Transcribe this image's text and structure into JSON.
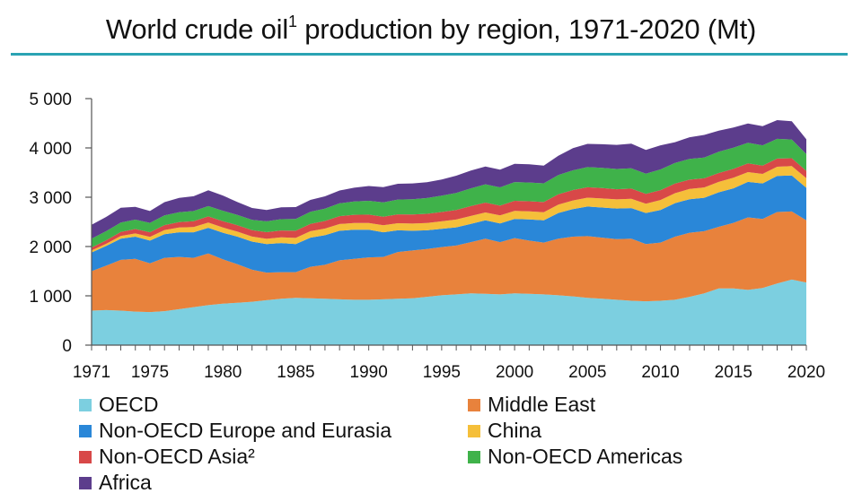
{
  "title": {
    "main": "World crude oil",
    "sup": "1",
    "rest": " production by region, 1971-2020 (Mt)"
  },
  "chart_data": {
    "type": "area",
    "stacked": true,
    "ylim": [
      0,
      5000
    ],
    "yticks": [
      0,
      1000,
      2000,
      3000,
      4000,
      5000
    ],
    "ytick_labels": [
      "0",
      "1 000",
      "2 000",
      "3 000",
      "4 000",
      "5 000"
    ],
    "xlim": [
      1971,
      2020
    ],
    "xticks": [
      1971,
      1975,
      1980,
      1985,
      1990,
      1995,
      2000,
      2005,
      2010,
      2015,
      2020
    ],
    "xtick_labels": [
      "1971",
      "1975",
      "1980",
      "1985",
      "1990",
      "1995",
      "2000",
      "2005",
      "2010",
      "2015",
      "2020"
    ],
    "x": [
      1971,
      1972,
      1973,
      1974,
      1975,
      1976,
      1977,
      1978,
      1979,
      1980,
      1981,
      1982,
      1983,
      1984,
      1985,
      1986,
      1987,
      1988,
      1989,
      1990,
      1991,
      1992,
      1993,
      1994,
      1995,
      1996,
      1997,
      1998,
      1999,
      2000,
      2001,
      2002,
      2003,
      2004,
      2005,
      2006,
      2007,
      2008,
      2009,
      2010,
      2011,
      2012,
      2013,
      2014,
      2015,
      2016,
      2017,
      2018,
      2019,
      2020
    ],
    "series": [
      {
        "name": "OECD",
        "color": "#7ccfe0",
        "values": [
          700,
          710,
          700,
          680,
          670,
          690,
          730,
          770,
          810,
          840,
          860,
          880,
          910,
          940,
          960,
          950,
          940,
          930,
          920,
          920,
          930,
          940,
          950,
          980,
          1010,
          1030,
          1050,
          1040,
          1030,
          1050,
          1040,
          1030,
          1010,
          990,
          960,
          940,
          920,
          900,
          890,
          900,
          920,
          980,
          1050,
          1150,
          1150,
          1120,
          1160,
          1250,
          1330,
          1270
        ]
      },
      {
        "name": "Middle East",
        "color": "#e8823c",
        "values": [
          800,
          900,
          1030,
          1070,
          990,
          1080,
          1060,
          1000,
          1050,
          900,
          780,
          650,
          560,
          540,
          520,
          640,
          690,
          790,
          830,
          860,
          860,
          950,
          970,
          970,
          980,
          990,
          1040,
          1120,
          1060,
          1120,
          1080,
          1050,
          1150,
          1210,
          1250,
          1240,
          1230,
          1260,
          1160,
          1180,
          1280,
          1300,
          1260,
          1250,
          1330,
          1470,
          1400,
          1450,
          1380,
          1260
        ]
      },
      {
        "name": "Non-OECD Europe and Eurasia",
        "color": "#2a87d8",
        "values": [
          380,
          400,
          430,
          450,
          460,
          480,
          500,
          520,
          520,
          540,
          560,
          570,
          580,
          590,
          570,
          590,
          600,
          600,
          590,
          560,
          500,
          440,
          400,
          380,
          370,
          370,
          370,
          370,
          380,
          390,
          430,
          450,
          520,
          560,
          600,
          610,
          620,
          620,
          630,
          660,
          680,
          680,
          680,
          700,
          700,
          720,
          720,
          730,
          730,
          660
        ]
      },
      {
        "name": "China",
        "color": "#f5bf3a",
        "values": [
          40,
          45,
          55,
          65,
          75,
          85,
          95,
          105,
          105,
          105,
          102,
          102,
          106,
          115,
          125,
          130,
          134,
          137,
          138,
          138,
          140,
          142,
          145,
          146,
          150,
          157,
          160,
          161,
          160,
          162,
          164,
          167,
          170,
          175,
          181,
          185,
          187,
          190,
          189,
          203,
          202,
          207,
          209,
          211,
          215,
          200,
          192,
          189,
          191,
          195
        ]
      },
      {
        "name": "Non-OECD Asia²",
        "color": "#d84848",
        "values": [
          60,
          70,
          80,
          90,
          95,
          100,
          110,
          120,
          125,
          130,
          130,
          130,
          135,
          140,
          145,
          150,
          155,
          160,
          165,
          170,
          175,
          180,
          185,
          188,
          190,
          195,
          200,
          200,
          200,
          205,
          205,
          205,
          210,
          210,
          210,
          210,
          205,
          205,
          200,
          200,
          195,
          190,
          185,
          180,
          180,
          175,
          170,
          165,
          160,
          150
        ]
      },
      {
        "name": "Non-OECD Americas",
        "color": "#3fb24a",
        "values": [
          180,
          185,
          190,
          190,
          190,
          195,
          200,
          205,
          210,
          210,
          210,
          210,
          220,
          230,
          240,
          245,
          250,
          260,
          270,
          280,
          290,
          300,
          310,
          320,
          330,
          345,
          360,
          370,
          370,
          380,
          380,
          380,
          390,
          400,
          410,
          410,
          410,
          410,
          410,
          420,
          420,
          420,
          420,
          430,
          430,
          420,
          410,
          400,
          380,
          340
        ]
      },
      {
        "name": "Africa",
        "color": "#5c3d8c",
        "values": [
          280,
          290,
          300,
          260,
          240,
          270,
          290,
          300,
          320,
          310,
          260,
          240,
          230,
          240,
          240,
          240,
          250,
          260,
          280,
          300,
          310,
          320,
          320,
          320,
          330,
          350,
          360,
          360,
          360,
          370,
          370,
          360,
          390,
          450,
          470,
          480,
          490,
          500,
          480,
          490,
          420,
          440,
          460,
          430,
          410,
          390,
          390,
          380,
          370,
          300
        ]
      }
    ]
  }
}
